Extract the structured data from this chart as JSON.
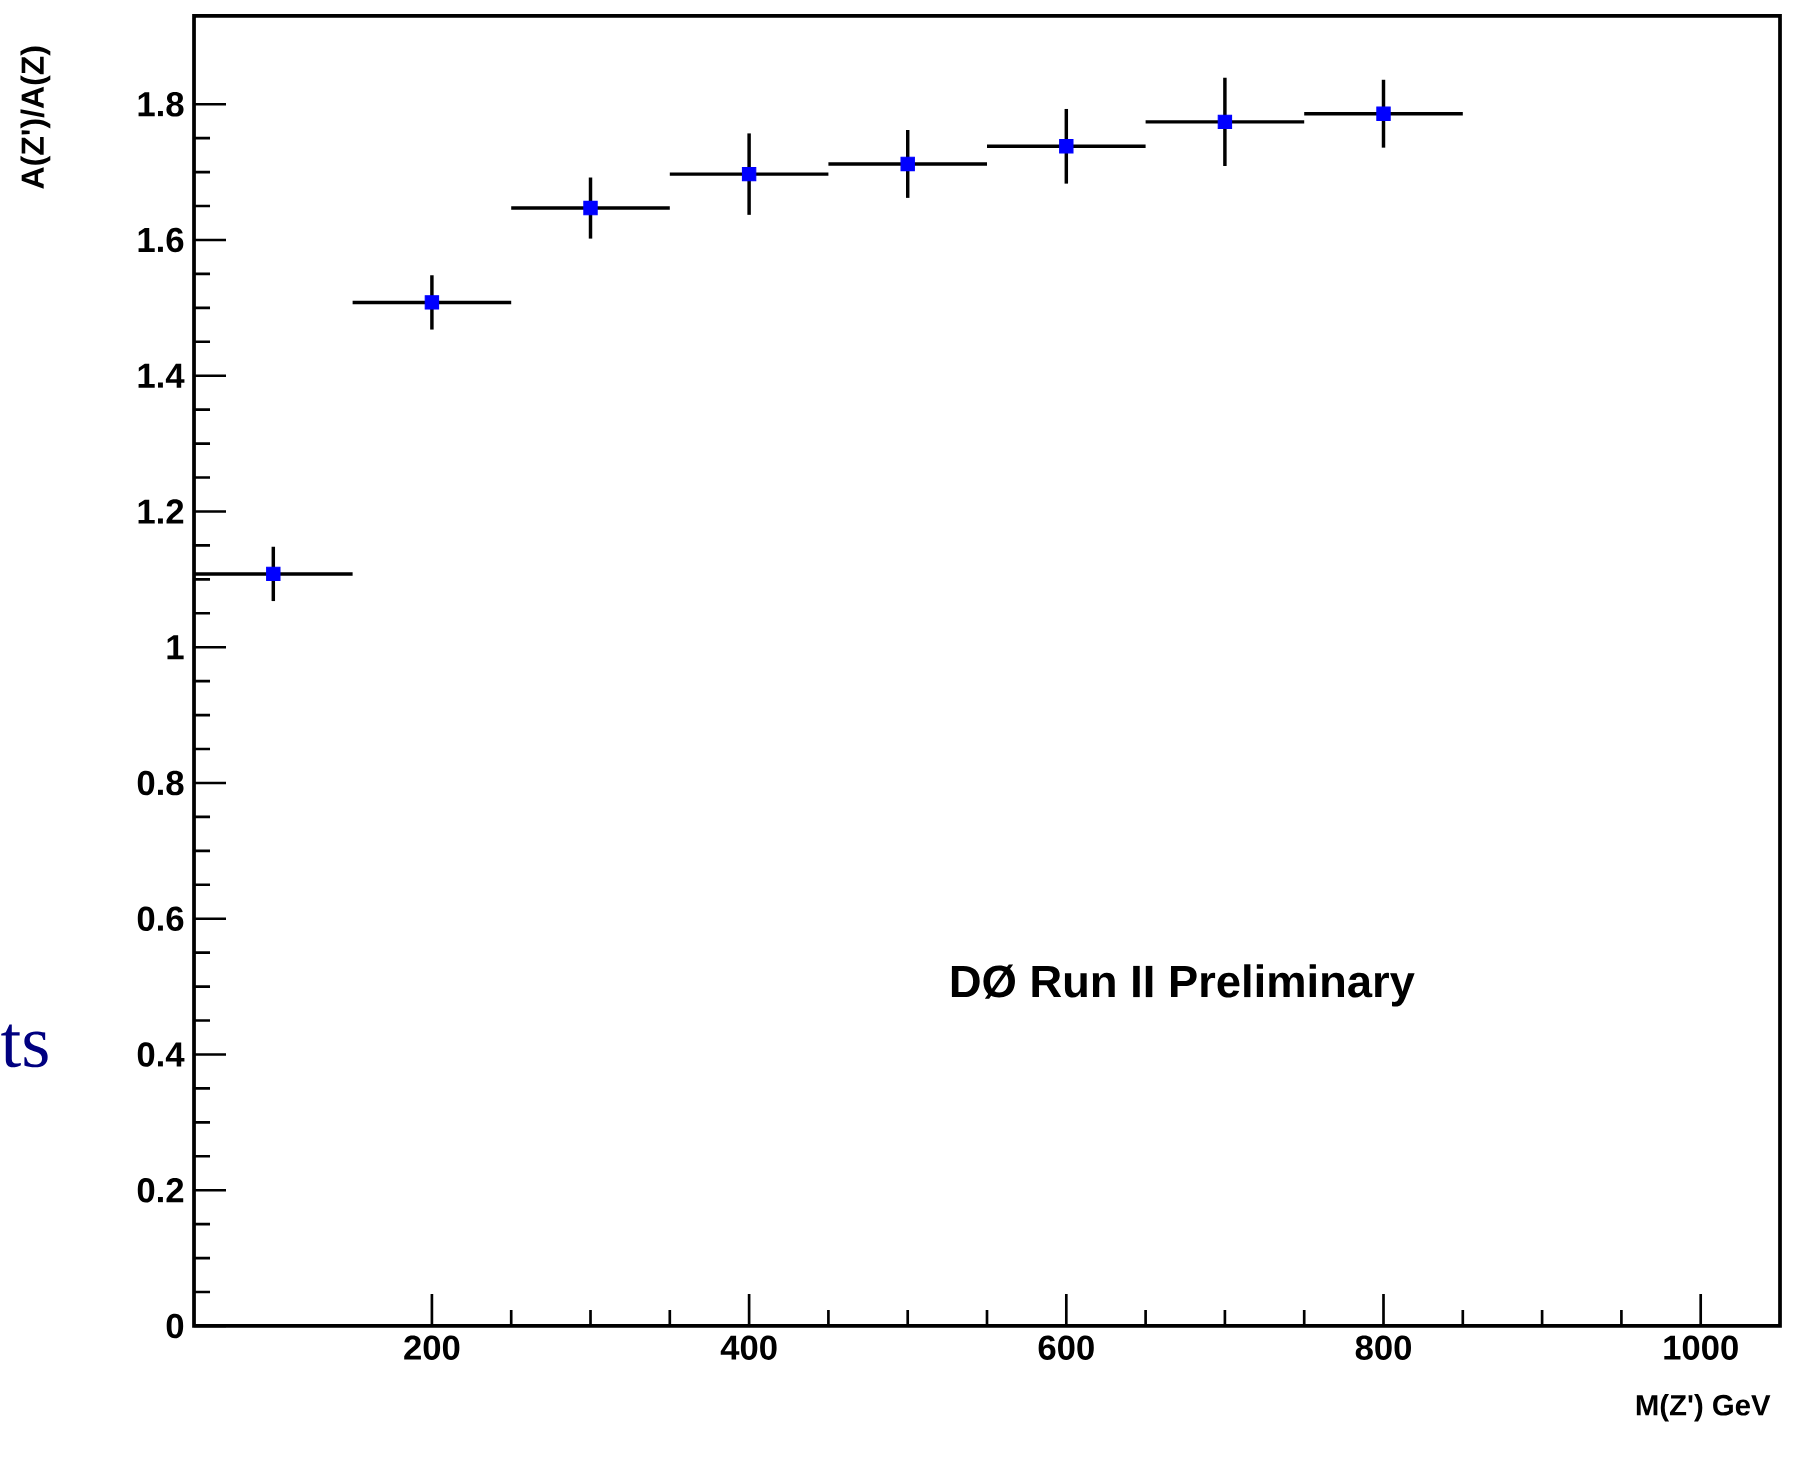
{
  "chart_data": {
    "type": "scatter",
    "xlabel": "M(Z') GeV",
    "ylabel": "A(Z')/A(Z)",
    "x": [
      100,
      200,
      300,
      400,
      500,
      600,
      700,
      800
    ],
    "series": [
      {
        "color": "#0000ff",
        "values": [
          1.108,
          1.508,
          1.647,
          1.697,
          1.712,
          1.738,
          1.774,
          1.786
        ],
        "errors": [
          0.04,
          0.04,
          0.045,
          0.06,
          0.05,
          0.055,
          0.065,
          0.05
        ],
        "xerrors": [
          50,
          50,
          50,
          50,
          50,
          50,
          50,
          50
        ]
      }
    ],
    "xlim": [
      50,
      1050
    ],
    "ylim": [
      0,
      1.93
    ],
    "xticks": [
      200,
      400,
      600,
      800,
      1000
    ],
    "yticks": [
      0,
      0.2,
      0.4,
      0.6,
      0.8,
      1,
      1.2,
      1.4,
      1.6,
      1.8
    ],
    "marker": "square",
    "annotations": [
      "DØ  Run II  Preliminary",
      "ts"
    ]
  }
}
